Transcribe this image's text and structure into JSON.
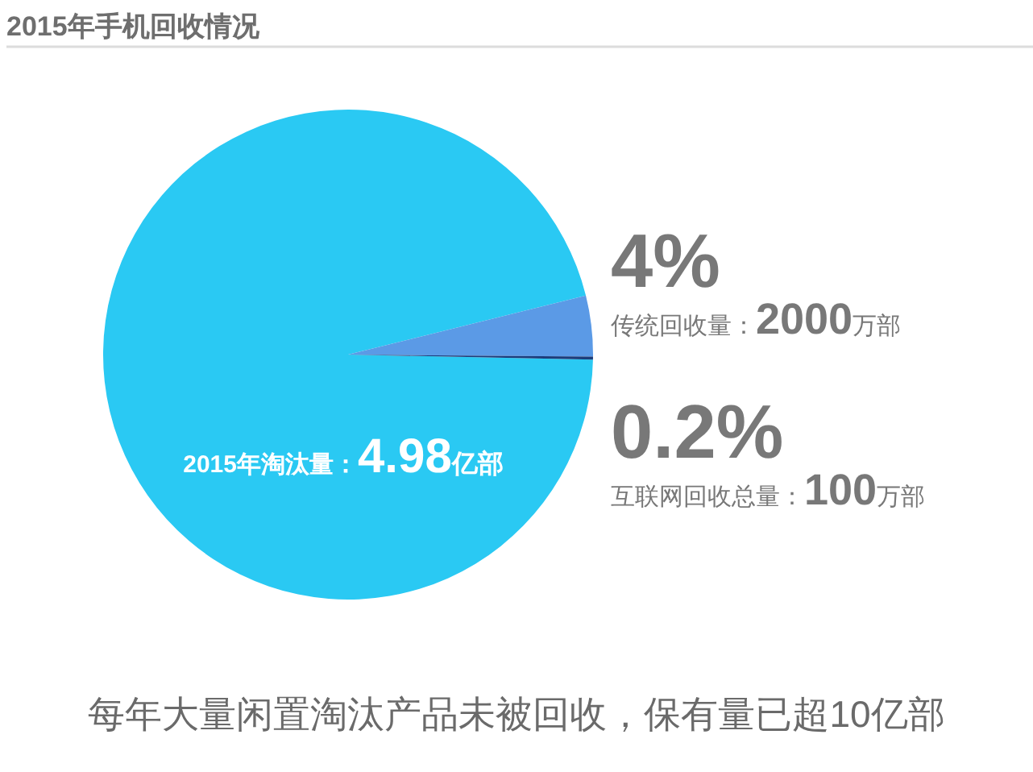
{
  "chart_data": {
    "type": "pie",
    "title": "2015年手机回收情况",
    "categories": [
      "2015年淘汰量：4.98亿部",
      "传统回收量：2000万部",
      "互联网回收总量：100万部"
    ],
    "values": [
      95.8,
      4,
      0.2
    ],
    "value_labels": [
      null,
      "4%",
      "0.2%"
    ],
    "colors": [
      "#2ac9f3",
      "#5b9ae6",
      "#1c3d7c"
    ],
    "annotations": [
      "每年大量闲置淘汰产品未被回收，保有量已超10亿部"
    ]
  }
}
